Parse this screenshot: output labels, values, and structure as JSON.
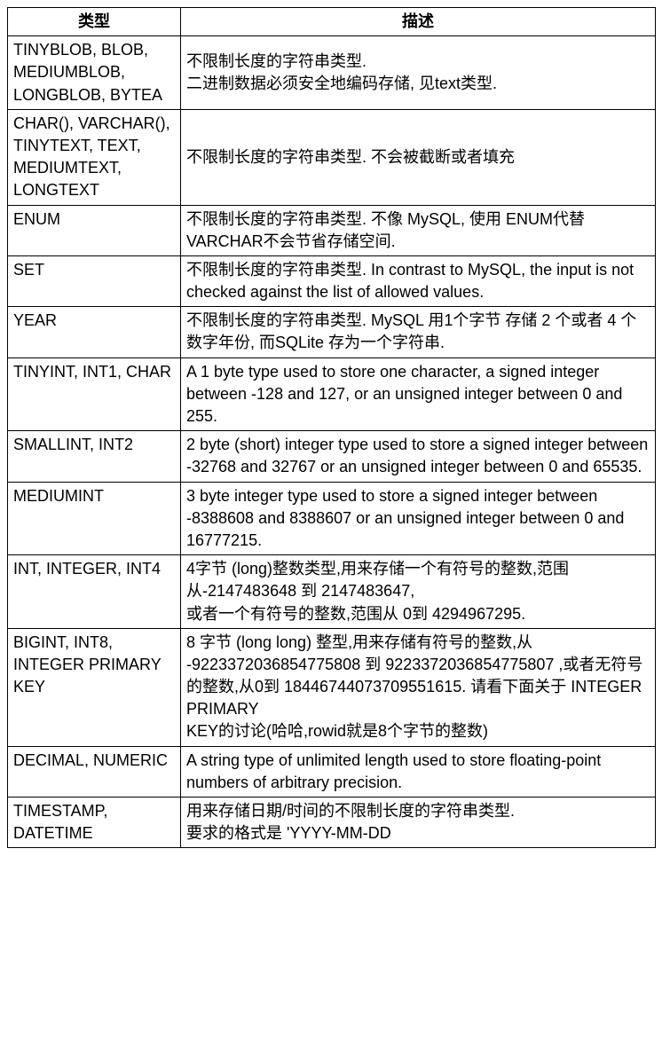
{
  "table": {
    "columns": [
      "类型",
      "描述"
    ],
    "rows": [
      {
        "type": "TINYBLOB, BLOB, MEDIUMBLOB, LONGBLOB, BYTEA",
        "desc": "不限制长度的字符串类型.\n二进制数据必须安全地编码存储, 见text类型."
      },
      {
        "type": "CHAR(), VARCHAR(), TINYTEXT, TEXT, MEDIUMTEXT, LONGTEXT",
        "desc": "不限制长度的字符串类型. 不会被截断或者填充"
      },
      {
        "type": "ENUM",
        "desc": "不限制长度的字符串类型. 不像 MySQL, 使用 ENUM代替VARCHAR不会节省存储空间."
      },
      {
        "type": "SET",
        "desc": "不限制长度的字符串类型. In contrast to MySQL, the input is not checked against the list of allowed values."
      },
      {
        "type": "YEAR",
        "desc": "不限制长度的字符串类型. MySQL 用1个字节 存储 2 个或者 4 个数字年份, 而SQLite 存为一个字符串."
      },
      {
        "type": "TINYINT, INT1, CHAR",
        "desc": "A 1 byte type used to store one character, a signed integer between -128 and 127, or an unsigned integer between 0 and 255."
      },
      {
        "type": "SMALLINT, INT2",
        "desc": "2 byte (short) integer type used to store a signed integer between -32768 and 32767 or an unsigned integer between 0 and 65535."
      },
      {
        "type": "MEDIUMINT",
        "desc": "3 byte integer type used to store a signed integer between -8388608 and 8388607 or an unsigned integer between 0 and 16777215."
      },
      {
        "type": "INT, INTEGER, INT4",
        "desc": "4字节 (long)整数类型,用来存储一个有符号的整数,范围从-2147483648 到 2147483647,\n或者一个有符号的整数,范围从 0到 4294967295."
      },
      {
        "type": "BIGINT, INT8, INTEGER PRIMARY KEY",
        "desc": "8 字节 (long long) 整型,用来存储有符号的整数,从 -9223372036854775808 到 9223372036854775807 ,或者无符号的整数,从0到 18446744073709551615.  请看下面关于 INTEGER PRIMARY\nKEY的讨论(哈哈,rowid就是8个字节的整数)"
      },
      {
        "type": "DECIMAL, NUMERIC",
        "desc": "A string type of unlimited length used to store floating-point numbers of arbitrary precision."
      },
      {
        "type": "TIMESTAMP, DATETIME",
        "desc": "用来存储日期/时间的不限制长度的字符串类型.\n要求的格式是 'YYYY-MM-DD"
      }
    ]
  }
}
